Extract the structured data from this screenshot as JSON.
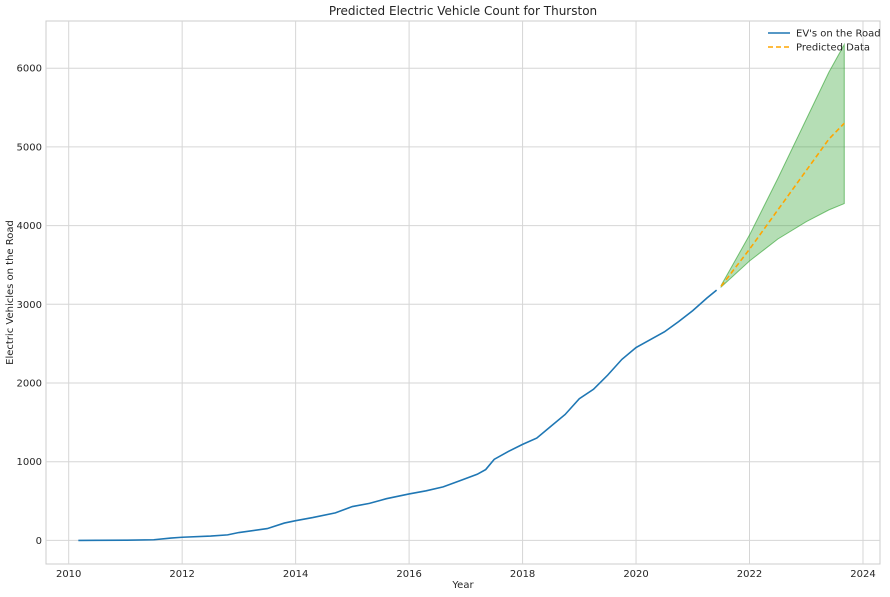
{
  "chart_data": {
    "type": "line",
    "title": "Predicted Electric Vehicle Count for Thurston",
    "xlabel": "Year",
    "ylabel": "Electric Vehicles on the Road",
    "xlim": [
      2009.6,
      2024.3
    ],
    "ylim": [
      -300,
      6600
    ],
    "xticks": [
      2010,
      2012,
      2014,
      2016,
      2018,
      2020,
      2022,
      2024
    ],
    "yticks": [
      0,
      1000,
      2000,
      3000,
      4000,
      5000,
      6000
    ],
    "grid": true,
    "legend_position": "top-right",
    "series": [
      {
        "name": "EV's on the Road",
        "color": "#1f77b4",
        "style": "solid",
        "x": [
          2010.17,
          2010.5,
          2011.0,
          2011.5,
          2011.8,
          2012.0,
          2012.5,
          2012.8,
          2013.0,
          2013.5,
          2013.8,
          2014.0,
          2014.3,
          2014.7,
          2015.0,
          2015.3,
          2015.6,
          2016.0,
          2016.3,
          2016.6,
          2016.9,
          2017.2,
          2017.35,
          2017.5,
          2017.75,
          2018.0,
          2018.25,
          2018.5,
          2018.75,
          2019.0,
          2019.25,
          2019.5,
          2019.75,
          2020.0,
          2020.25,
          2020.5,
          2020.75,
          2021.0,
          2021.25,
          2021.42
        ],
        "y": [
          0,
          1,
          2,
          8,
          30,
          40,
          55,
          70,
          100,
          150,
          220,
          250,
          290,
          350,
          430,
          470,
          530,
          590,
          630,
          680,
          760,
          840,
          900,
          1030,
          1130,
          1220,
          1300,
          1450,
          1600,
          1800,
          1920,
          2100,
          2300,
          2450,
          2550,
          2650,
          2780,
          2920,
          3080,
          3180
        ]
      },
      {
        "name": "Predicted Data",
        "color": "#ffa500",
        "style": "dashed",
        "x": [
          2021.5,
          2022.0,
          2022.5,
          2023.0,
          2023.4,
          2023.67
        ],
        "y": [
          3230,
          3700,
          4200,
          4700,
          5100,
          5300
        ]
      }
    ],
    "confidence_band": {
      "color": "#2ca02c",
      "x": [
        2021.5,
        2022.0,
        2022.5,
        2023.0,
        2023.4,
        2023.67
      ],
      "lower": [
        3220,
        3550,
        3830,
        4050,
        4200,
        4280
      ],
      "upper": [
        3240,
        3880,
        4600,
        5350,
        5950,
        6300
      ]
    }
  }
}
